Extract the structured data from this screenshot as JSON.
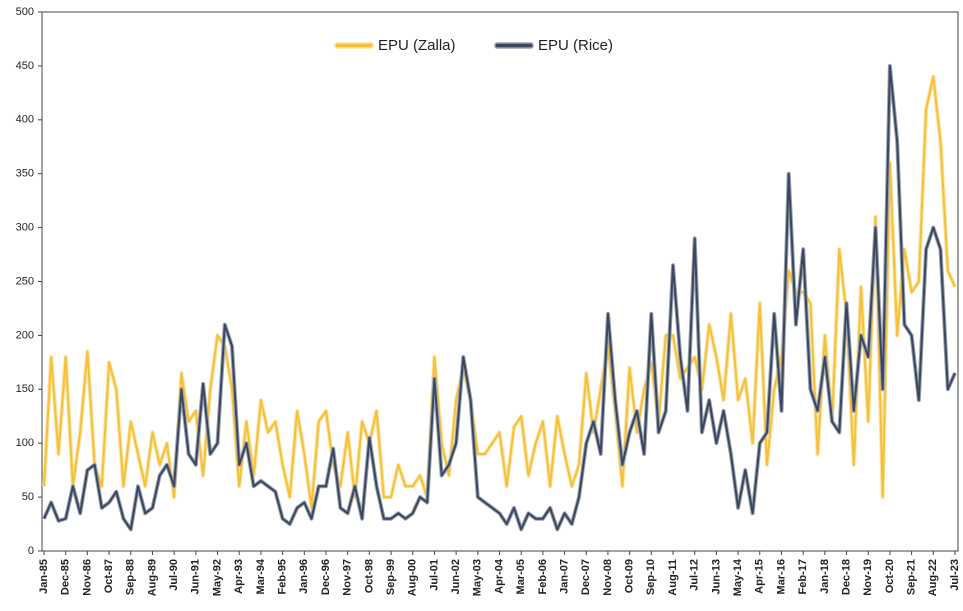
{
  "chart_data": {
    "type": "line",
    "categories": [
      "Jan-85",
      null,
      null,
      "Dec-85",
      null,
      null,
      "Nov-86",
      null,
      null,
      "Oct-87",
      null,
      null,
      "Sep-88",
      null,
      null,
      "Aug-89",
      null,
      null,
      "Jul-90",
      null,
      null,
      "Jun-91",
      null,
      null,
      "May-92",
      null,
      null,
      "Apr-93",
      null,
      null,
      "Mar-94",
      null,
      null,
      "Feb-95",
      null,
      null,
      "Jan-96",
      null,
      null,
      "Dec-96",
      null,
      null,
      "Nov-97",
      null,
      null,
      "Oct-98",
      null,
      null,
      "Sep-99",
      null,
      null,
      "Aug-00",
      null,
      null,
      "Jul-01",
      null,
      null,
      "Jun-02",
      null,
      null,
      "May-03",
      null,
      null,
      "Apr-04",
      null,
      null,
      "Mar-05",
      null,
      null,
      "Feb-06",
      null,
      null,
      "Jan-07",
      null,
      null,
      "Dec-07",
      null,
      null,
      "Nov-08",
      null,
      null,
      "Oct-09",
      null,
      null,
      "Sep-10",
      null,
      null,
      "Aug-11",
      null,
      null,
      "Jul-12",
      null,
      null,
      "Jun-13",
      null,
      null,
      "May-14",
      null,
      null,
      "Apr-15",
      null,
      null,
      "Mar-16",
      null,
      null,
      "Feb-17",
      null,
      null,
      "Jan-18",
      null,
      null,
      "Dec-18",
      null,
      null,
      "Nov-19",
      null,
      null,
      "Oct-20",
      null,
      null,
      "Sep-21",
      null,
      null,
      "Aug-22",
      null,
      null,
      "Jul-23"
    ],
    "series": [
      {
        "name": "EPU (Zalla)",
        "color": "#f5c03c",
        "values": [
          60,
          180,
          90,
          180,
          60,
          110,
          185,
          80,
          60,
          175,
          150,
          60,
          120,
          90,
          60,
          110,
          80,
          100,
          50,
          165,
          120,
          130,
          70,
          150,
          200,
          190,
          150,
          60,
          120,
          70,
          140,
          110,
          120,
          80,
          50,
          130,
          90,
          40,
          120,
          130,
          80,
          60,
          110,
          50,
          120,
          100,
          130,
          50,
          50,
          80,
          60,
          60,
          70,
          50,
          180,
          100,
          70,
          140,
          170,
          140,
          90,
          90,
          100,
          110,
          60,
          115,
          125,
          70,
          100,
          120,
          60,
          125,
          90,
          60,
          80,
          165,
          110,
          150,
          190,
          130,
          60,
          170,
          110,
          150,
          175,
          120,
          200,
          200,
          160,
          170,
          180,
          150,
          210,
          180,
          140,
          220,
          140,
          160,
          100,
          230,
          80,
          150,
          180,
          260,
          240,
          240,
          230,
          90,
          200,
          120,
          280,
          220,
          80,
          245,
          120,
          310,
          50,
          360,
          200,
          280,
          240,
          250,
          410,
          440,
          380,
          260,
          245
        ]
      },
      {
        "name": "EPU (Rice)",
        "color": "#3b475c",
        "values": [
          30,
          45,
          28,
          30,
          60,
          35,
          75,
          80,
          40,
          45,
          55,
          30,
          20,
          60,
          35,
          40,
          70,
          80,
          60,
          150,
          90,
          80,
          155,
          90,
          100,
          210,
          190,
          80,
          100,
          60,
          65,
          60,
          55,
          30,
          25,
          40,
          45,
          30,
          60,
          60,
          95,
          40,
          35,
          60,
          30,
          105,
          60,
          30,
          30,
          35,
          30,
          35,
          50,
          45,
          160,
          70,
          80,
          100,
          180,
          140,
          50,
          45,
          40,
          35,
          25,
          40,
          20,
          35,
          30,
          30,
          40,
          20,
          35,
          25,
          50,
          100,
          120,
          90,
          220,
          140,
          80,
          110,
          130,
          90,
          220,
          110,
          130,
          265,
          180,
          130,
          290,
          110,
          140,
          100,
          130,
          90,
          40,
          75,
          35,
          100,
          110,
          220,
          130,
          350,
          210,
          280,
          150,
          130,
          180,
          120,
          110,
          230,
          130,
          200,
          180,
          300,
          150,
          450,
          380,
          210,
          200,
          140,
          280,
          300,
          280,
          150,
          165
        ]
      }
    ],
    "ylim": [
      0,
      500
    ],
    "yticks": [
      0,
      50,
      100,
      150,
      200,
      250,
      300,
      350,
      400,
      450,
      500
    ],
    "legend": "top"
  }
}
